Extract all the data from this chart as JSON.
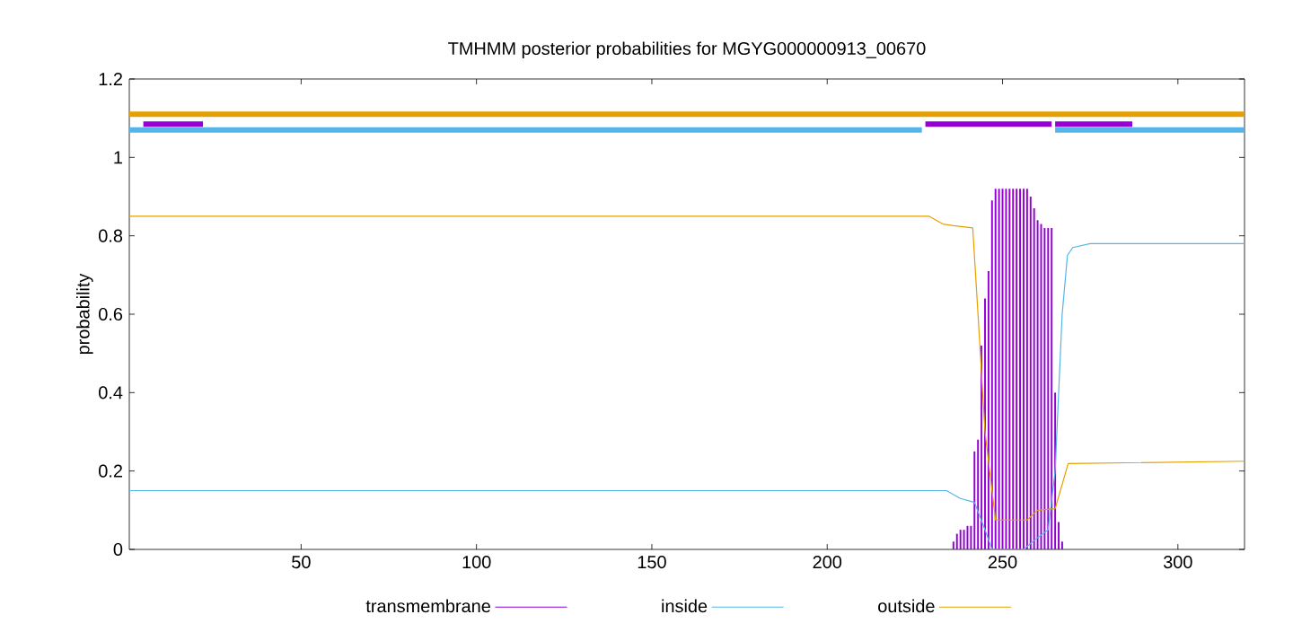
{
  "chart_data": {
    "type": "line",
    "title": "TMHMM posterior probabilities for MGYG000000913_00670",
    "ylabel": "probability",
    "xlim": [
      1,
      319
    ],
    "ylim": [
      0,
      1.2
    ],
    "xticks": [
      50,
      100,
      150,
      200,
      250,
      300
    ],
    "yticks": [
      0,
      0.2,
      0.4,
      0.6,
      0.8,
      1,
      1.2
    ],
    "legend": "bottom",
    "series": [
      {
        "name": "transmembrane",
        "type": "bar",
        "color": "#9400d3",
        "x": [
          236,
          237,
          238,
          239,
          240,
          241,
          242,
          243,
          244,
          245,
          246,
          247,
          248,
          249,
          250,
          251,
          252,
          253,
          254,
          255,
          256,
          257,
          258,
          259,
          260,
          261,
          262,
          263,
          264,
          265,
          266,
          267
        ],
        "values": [
          0.02,
          0.04,
          0.05,
          0.05,
          0.06,
          0.06,
          0.25,
          0.28,
          0.52,
          0.64,
          0.71,
          0.89,
          0.92,
          0.92,
          0.92,
          0.92,
          0.92,
          0.92,
          0.92,
          0.92,
          0.92,
          0.92,
          0.9,
          0.87,
          0.84,
          0.83,
          0.82,
          0.82,
          0.82,
          0.4,
          0.07,
          0.02
        ]
      },
      {
        "name": "inside",
        "color": "#56b4e9",
        "x": [
          1,
          229,
          234,
          238,
          242,
          245,
          247,
          256,
          260,
          263,
          265,
          267,
          268.5,
          270,
          275,
          319
        ],
        "values": [
          0.15,
          0.15,
          0.15,
          0.13,
          0.12,
          0.05,
          0,
          0,
          0.03,
          0.05,
          0.2,
          0.6,
          0.75,
          0.77,
          0.78,
          0.78
        ]
      },
      {
        "name": "outside",
        "color": "#e69f00",
        "x": [
          1,
          229,
          233,
          236,
          241.5,
          243,
          245,
          248,
          257,
          260,
          265,
          266.5,
          268.7,
          319
        ],
        "values": [
          0.85,
          0.85,
          0.83,
          0.826,
          0.82,
          0.6,
          0.3,
          0.075,
          0.075,
          0.1,
          0.104,
          0.15,
          0.219,
          0.225
        ]
      },
      {
        "color": "#56b4e9",
        "x": [
          1,
          227,
          227.5,
          265,
          319
        ],
        "values": [
          1.07,
          1.07,
          null,
          1.07,
          1.07
        ]
      },
      {
        "color": "#e69f00",
        "x": [
          1,
          319
        ],
        "values": [
          1.11,
          1.11
        ]
      },
      {
        "color": "#9400d3",
        "x": [
          5,
          22,
          22.5,
          228,
          264,
          264.5,
          265,
          287
        ],
        "values": [
          1.085,
          1.085,
          null,
          1.085,
          1.085,
          null,
          1.085,
          1.085
        ]
      }
    ]
  }
}
